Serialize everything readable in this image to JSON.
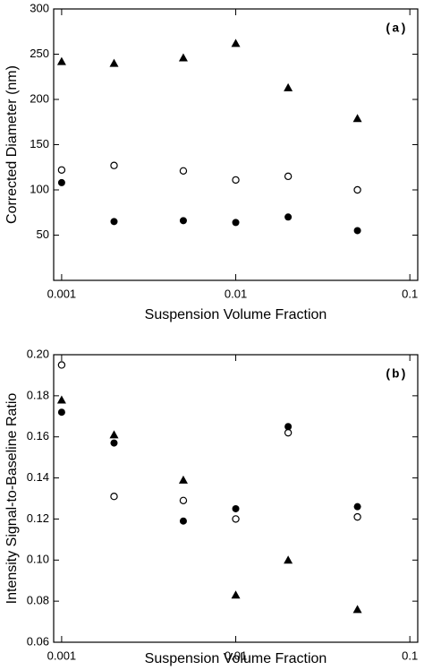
{
  "chart_data": [
    {
      "type": "scatter",
      "annotation": "(a)",
      "x_label": "Suspension Volume Fraction",
      "y_label": "Corrected Diameter (nm)",
      "x": [
        0.001,
        0.002,
        0.005,
        0.01,
        0.02,
        0.05
      ],
      "x_scale": "log",
      "xlim": [
        0.0009,
        0.111
      ],
      "xticks": [
        0.001,
        0.01,
        0.1
      ],
      "ylim": [
        0,
        300
      ],
      "yticks": [
        50,
        100,
        150,
        200,
        250,
        300
      ],
      "series": [
        {
          "marker": "triangle",
          "color": "#000000",
          "values": [
            242,
            240,
            246,
            262,
            213,
            179
          ]
        },
        {
          "marker": "circle-open",
          "color": "#000000",
          "values": [
            122,
            127,
            121,
            111,
            115,
            100
          ]
        },
        {
          "marker": "circle",
          "color": "#000000",
          "values": [
            108,
            65,
            66,
            64,
            70,
            55
          ]
        }
      ]
    },
    {
      "type": "scatter",
      "annotation": "(b)",
      "x_label": "Suspension Volume Fraction",
      "y_label": "Intensity Signal-to-Baseline Ratio",
      "x": [
        0.001,
        0.002,
        0.005,
        0.01,
        0.02,
        0.05
      ],
      "x_scale": "log",
      "xlim": [
        0.0009,
        0.111
      ],
      "xticks": [
        0.001,
        0.01,
        0.1
      ],
      "ylim": [
        0.06,
        0.2
      ],
      "yticks": [
        0.06,
        0.08,
        {
          "value": 0.1,
          "label": "0.10"
        },
        0.12,
        0.14,
        0.16,
        0.18,
        {
          "value": 0.2,
          "label": "0.20"
        }
      ],
      "series": [
        {
          "marker": "triangle",
          "color": "#000000",
          "values": [
            0.178,
            0.161,
            0.139,
            0.083,
            0.1,
            0.076
          ]
        },
        {
          "marker": "circle-open",
          "color": "#000000",
          "values": [
            0.195,
            0.131,
            0.129,
            0.12,
            0.162,
            0.121
          ]
        },
        {
          "marker": "circle",
          "color": "#000000",
          "values": [
            0.172,
            0.157,
            0.119,
            0.125,
            0.165,
            0.126
          ]
        }
      ]
    }
  ]
}
